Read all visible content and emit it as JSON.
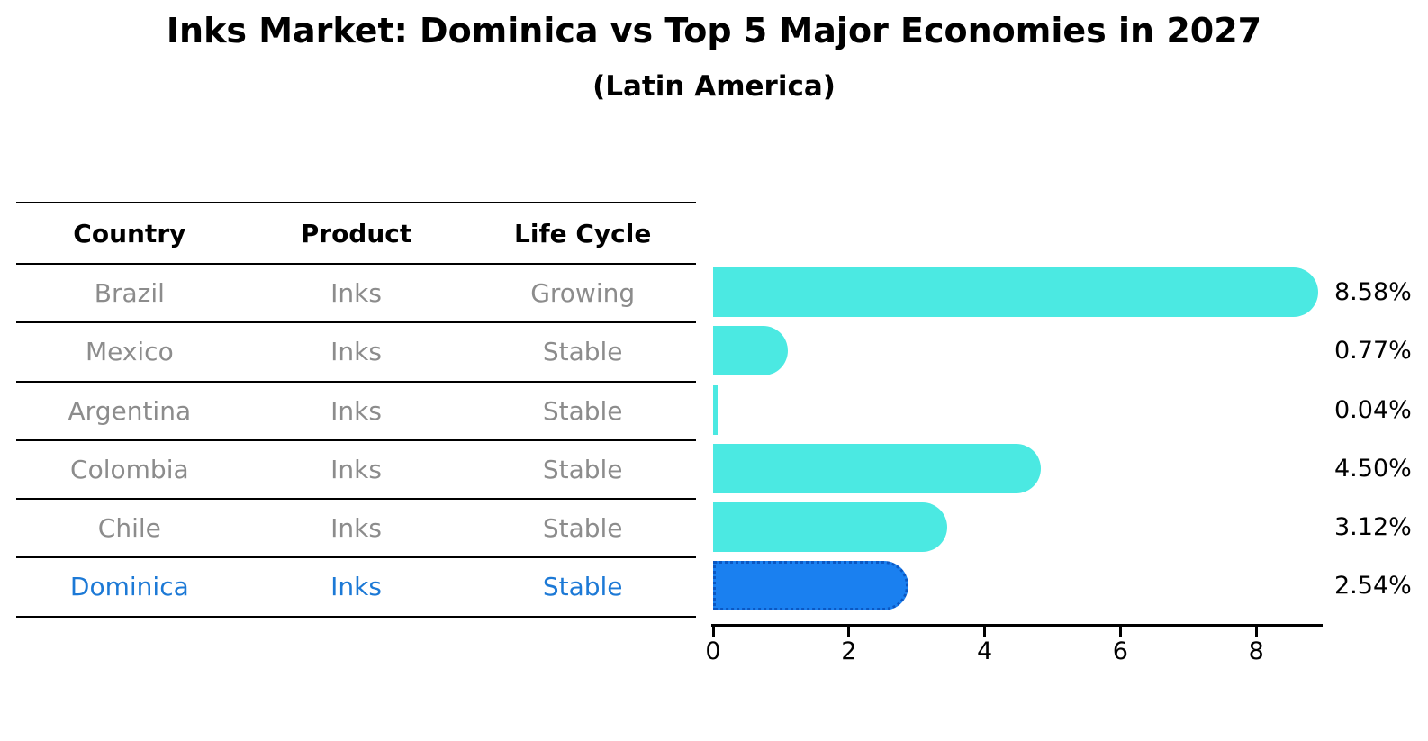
{
  "title": "Inks Market: Dominica vs Top 5 Major Economies in 2027",
  "subtitle": "(Latin America)",
  "table": {
    "headers": [
      "Country",
      "Product",
      "Life Cycle"
    ],
    "text_color": "#8c8c8c",
    "highlight_text_color": "#1c79d6",
    "rows": [
      {
        "country": "Brazil",
        "product": "Inks",
        "life_cycle": "Growing",
        "highlight": false
      },
      {
        "country": "Mexico",
        "product": "Inks",
        "life_cycle": "Stable",
        "highlight": false
      },
      {
        "country": "Argentina",
        "product": "Inks",
        "life_cycle": "Stable",
        "highlight": false
      },
      {
        "country": "Colombia",
        "product": "Inks",
        "life_cycle": "Stable",
        "highlight": false
      },
      {
        "country": "Chile",
        "product": "Inks",
        "life_cycle": "Stable",
        "highlight": false
      },
      {
        "country": "Dominica",
        "product": "Inks",
        "life_cycle": "Stable",
        "highlight": true
      }
    ]
  },
  "chart_data": {
    "type": "bar",
    "orientation": "horizontal",
    "title": "Inks Market: Dominica vs Top 5 Major Economies in 2027",
    "subtitle": "(Latin America)",
    "categories": [
      "Brazil",
      "Mexico",
      "Argentina",
      "Colombia",
      "Chile",
      "Dominica"
    ],
    "values": [
      8.58,
      0.77,
      0.04,
      4.5,
      3.12,
      2.54
    ],
    "value_labels": [
      "8.58%",
      "0.77%",
      "0.04%",
      "4.50%",
      "3.12%",
      "2.54%"
    ],
    "x_ticks": [
      0,
      2,
      4,
      6,
      8
    ],
    "xlim": [
      0,
      9
    ],
    "grid": false,
    "legend": false,
    "bar_color": "#4be9e2",
    "highlight_index": 5,
    "highlight_color": "#1a80f0",
    "highlight_border_color": "#0b57c2",
    "highlight_border_style": "dotted",
    "axis_color": "#000000"
  }
}
